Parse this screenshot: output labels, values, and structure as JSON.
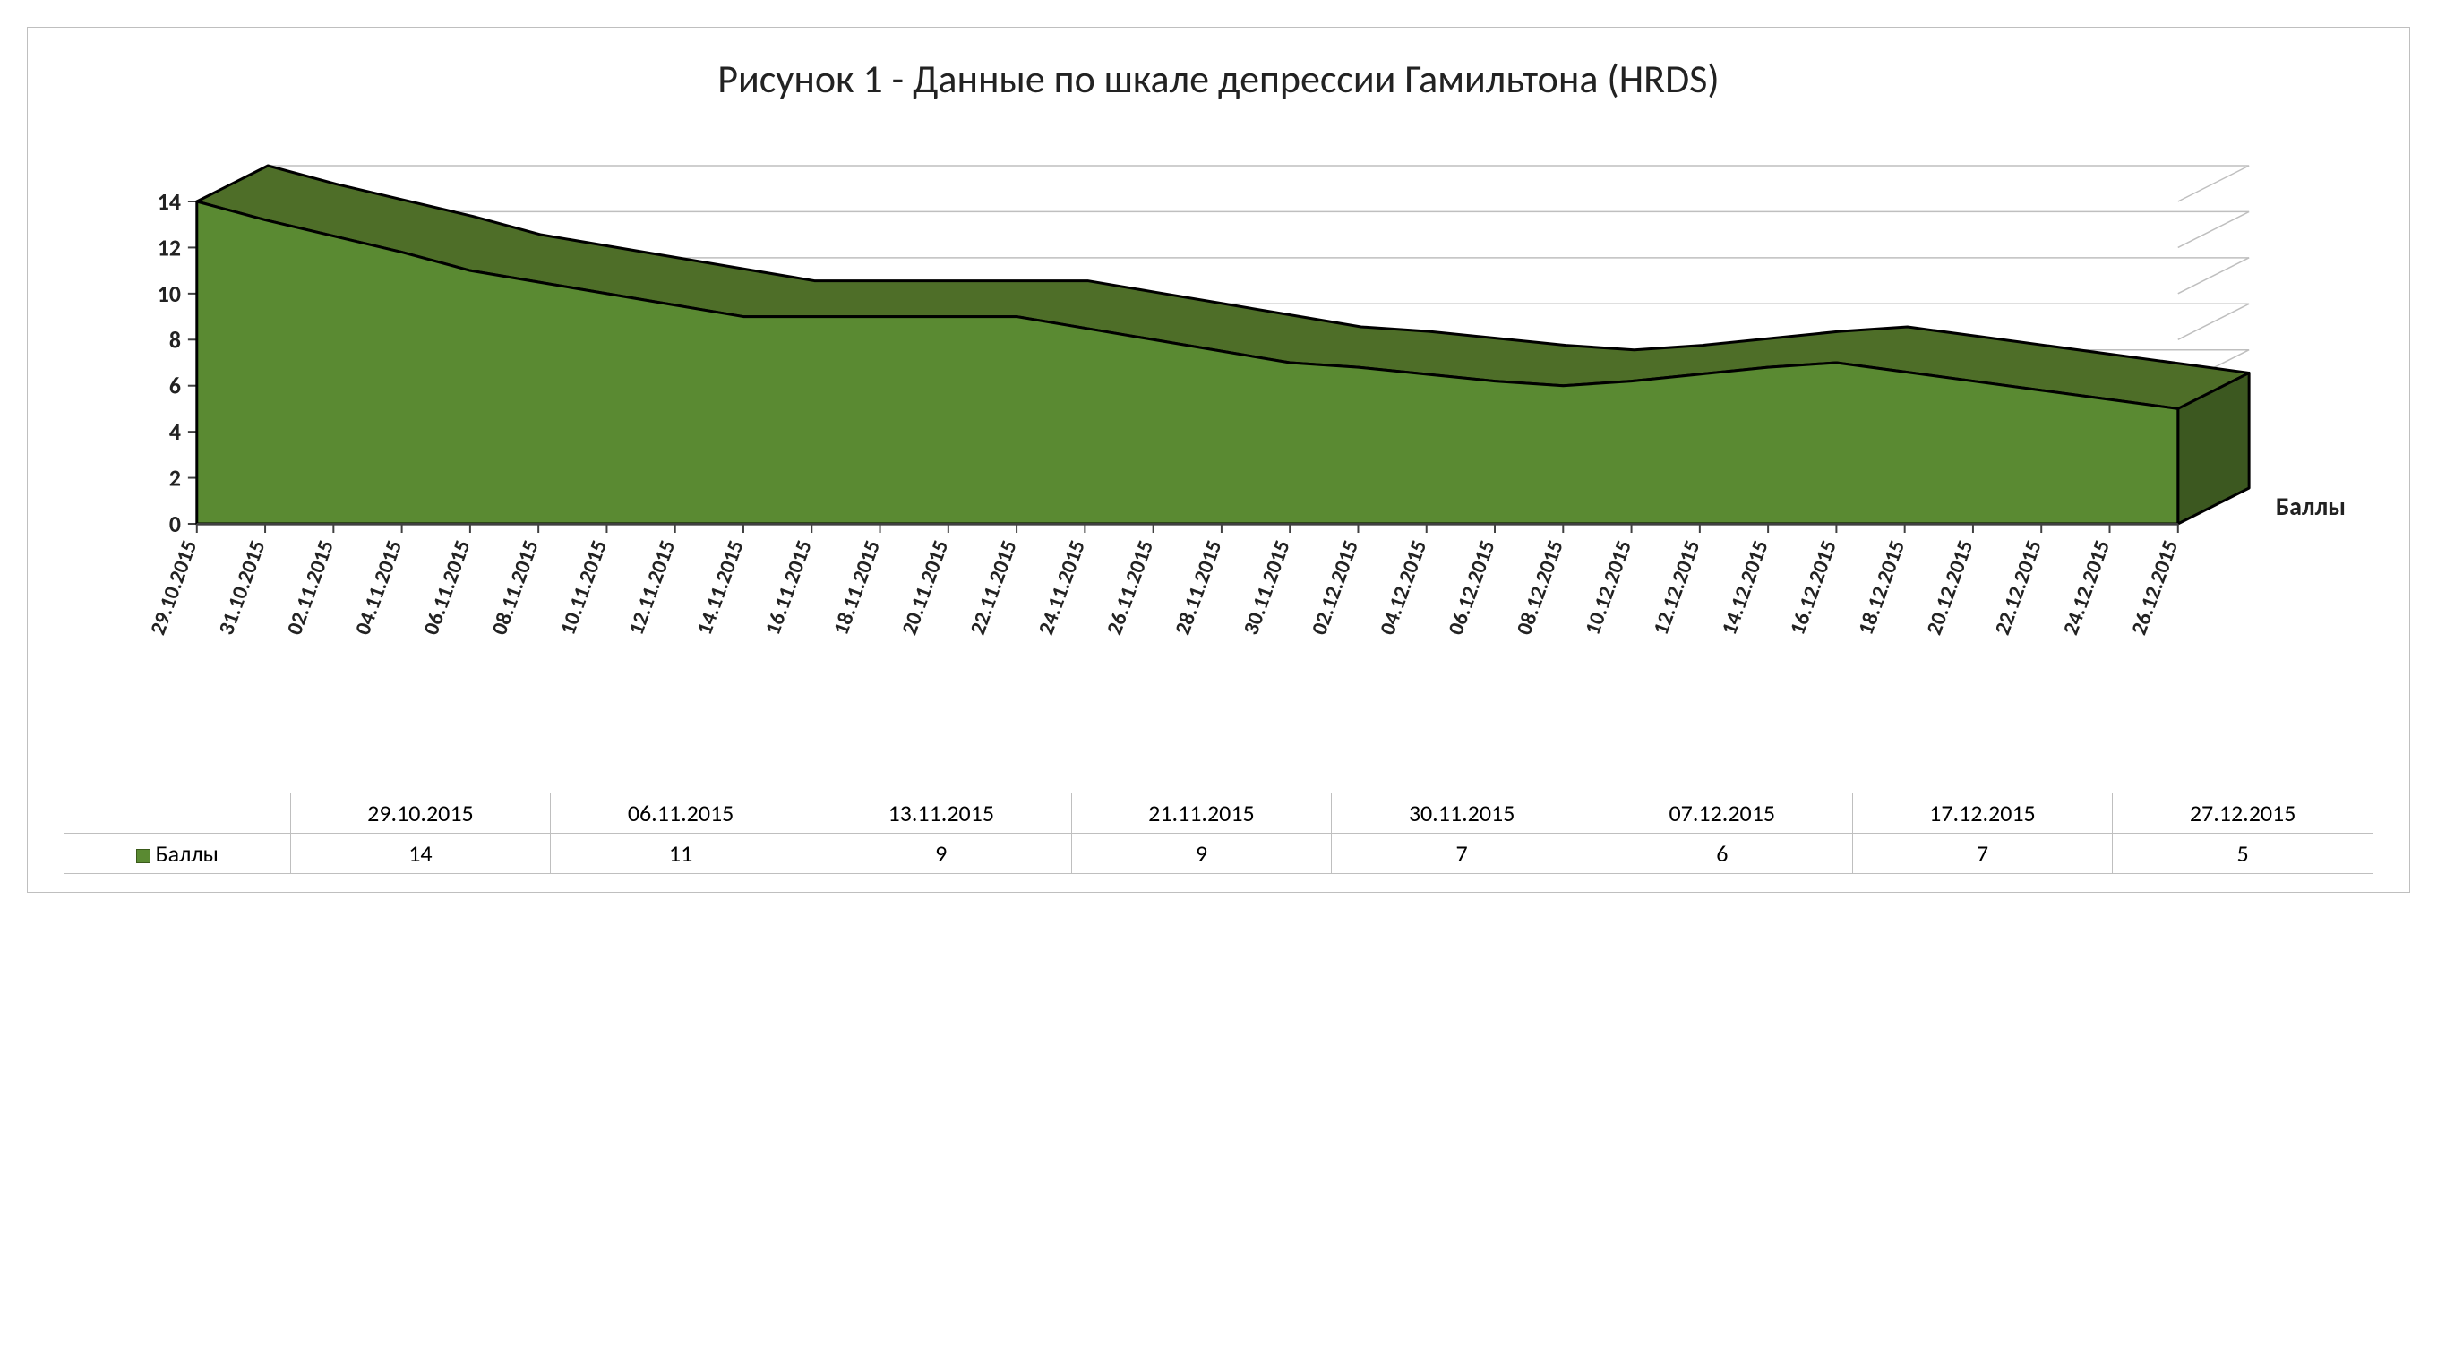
{
  "chart": {
    "type": "area3d",
    "title": "Рисунок 1 - Данные по шкале депрессии Гамильтона (HRDS)",
    "title_fontsize": 44,
    "series_name": "Баллы",
    "series_color_top": "#4e6e28",
    "series_color_front": "#5a8a32",
    "series_color_side": "#3c5820",
    "series_outline": "#000000",
    "floor_color": "#d9d9d9",
    "floor_outline": "#7f7f7f",
    "back_wall_color": "#ffffff",
    "grid_color": "#bfbfbf",
    "axis_color": "#404040",
    "tick_color": "#404040",
    "x_categories": [
      "29.10.2015",
      "31.10.2015",
      "02.11.2015",
      "04.11.2015",
      "06.11.2015",
      "08.11.2015",
      "10.11.2015",
      "12.11.2015",
      "14.11.2015",
      "16.11.2015",
      "18.11.2015",
      "20.11.2015",
      "22.11.2015",
      "24.11.2015",
      "26.11.2015",
      "28.11.2015",
      "30.11.2015",
      "02.12.2015",
      "04.12.2015",
      "06.12.2015",
      "08.12.2015",
      "10.12.2015",
      "12.12.2015",
      "14.12.2015",
      "16.12.2015",
      "18.12.2015",
      "20.12.2015",
      "22.12.2015",
      "24.12.2015",
      "26.12.2015"
    ],
    "values_interpolated": [
      14,
      13.2,
      12.5,
      11.8,
      11,
      10.5,
      10,
      9.5,
      9,
      9,
      9,
      9,
      9,
      8.5,
      8,
      7.5,
      7,
      6.8,
      6.5,
      6.2,
      6,
      6.2,
      6.5,
      6.8,
      7,
      6.6,
      6.2,
      5.8,
      5.4,
      5
    ],
    "y_ticks": [
      0,
      2,
      4,
      6,
      8,
      10,
      12,
      14
    ],
    "y_max": 14,
    "depth_dx": 80,
    "depth_dy": -40,
    "label_fontsize": 24,
    "label_fontweight": 700
  },
  "table": {
    "dates": [
      "29.10.2015",
      "06.11.2015",
      "13.11.2015",
      "21.11.2015",
      "30.11.2015",
      "07.12.2015",
      "17.12.2015",
      "27.12.2015"
    ],
    "values": [
      14,
      11,
      9,
      9,
      7,
      6,
      7,
      5
    ],
    "row_label": "Баллы",
    "swatch_fill": "#5a8a32",
    "swatch_border": "#3a5a1a"
  }
}
